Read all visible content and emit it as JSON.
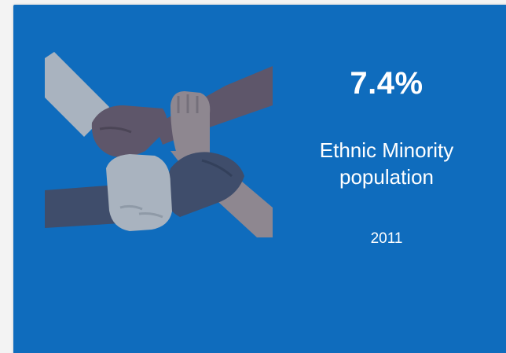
{
  "card": {
    "icon": "joined-hands-icon",
    "stat_value": "7.4%",
    "stat_label_line1": "Ethnic Minority",
    "stat_label_line2": "population",
    "year": "2011"
  },
  "colors": {
    "card_background": "#0f6cbd",
    "text": "#ffffff",
    "arm_light": "#a9b3bf",
    "arm_mauve": "#5e566a",
    "arm_taupe": "#8e8790",
    "arm_navy": "#3f4d6b"
  }
}
